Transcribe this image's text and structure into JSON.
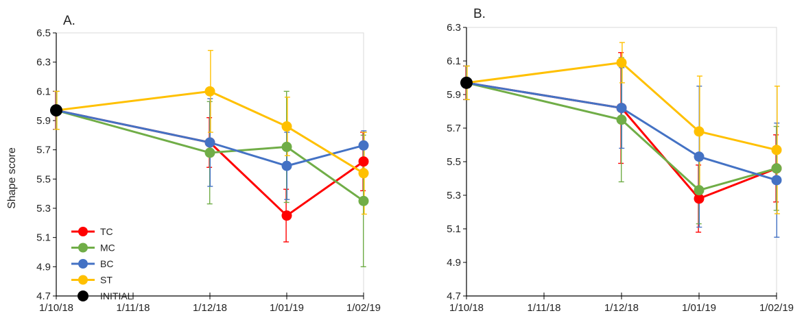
{
  "chart_data": [
    {
      "type": "line",
      "panel_label": "A.",
      "ylabel": "Shape score",
      "xlabel": "",
      "x_ticks": [
        "1/10/18",
        "1/11/18",
        "1/12/18",
        "1/01/19",
        "1/02/19"
      ],
      "y_ticks": [
        "4.7",
        "4.9",
        "5.1",
        "5.3",
        "5.5",
        "5.7",
        "5.9",
        "6.1",
        "6.3",
        "6.5"
      ],
      "ylim": [
        4.7,
        6.5
      ],
      "grid": false,
      "legend_position": "bottom-left",
      "series": [
        {
          "name": "TC",
          "color": "#ff0000",
          "x": [
            "1/10/18",
            "1/12/18",
            "1/01/19",
            "1/02/19"
          ],
          "values": [
            5.97,
            5.75,
            5.25,
            5.62
          ],
          "error": [
            0.13,
            0.17,
            0.18,
            0.2
          ]
        },
        {
          "name": "MC",
          "color": "#70ad47",
          "x": [
            "1/10/18",
            "1/12/18",
            "1/01/19",
            "1/02/19"
          ],
          "values": [
            5.97,
            5.68,
            5.72,
            5.35
          ],
          "error": [
            0.13,
            0.35,
            0.38,
            0.45
          ]
        },
        {
          "name": "BC",
          "color": "#4472c4",
          "x": [
            "1/10/18",
            "1/12/18",
            "1/01/19",
            "1/02/19"
          ],
          "values": [
            5.97,
            5.75,
            5.59,
            5.73
          ],
          "error": [
            0.13,
            0.3,
            0.23,
            0.1
          ]
        },
        {
          "name": "ST",
          "color": "#ffc000",
          "x": [
            "1/10/18",
            "1/12/18",
            "1/01/19",
            "1/02/19"
          ],
          "values": [
            5.97,
            6.1,
            5.86,
            5.54
          ],
          "error": [
            0.13,
            0.28,
            0.2,
            0.28
          ]
        },
        {
          "name": "INITIAL",
          "color": "#000000",
          "x": [
            "1/10/18"
          ],
          "values": [
            5.97
          ]
        }
      ]
    },
    {
      "type": "line",
      "panel_label": "B.",
      "xlabel": "",
      "ylabel": "",
      "x_ticks": [
        "1/10/18",
        "1/11/18",
        "1/12/18",
        "1/01/19",
        "1/02/19"
      ],
      "y_ticks": [
        "4.7",
        "4.9",
        "5.1",
        "5.3",
        "5.5",
        "5.7",
        "5.9",
        "6.1",
        "6.3"
      ],
      "ylim": [
        4.7,
        6.3
      ],
      "grid": false,
      "series": [
        {
          "color": "#ff0000",
          "x": [
            "1/10/18",
            "1/12/18",
            "1/01/19",
            "1/02/19"
          ],
          "values": [
            5.97,
            5.82,
            5.28,
            5.46
          ],
          "error": [
            0.1,
            0.33,
            0.2,
            0.2
          ]
        },
        {
          "color": "#70ad47",
          "x": [
            "1/10/18",
            "1/12/18",
            "1/01/19",
            "1/02/19"
          ],
          "values": [
            5.97,
            5.75,
            5.33,
            5.46
          ],
          "error": [
            0.1,
            0.37,
            0.2,
            0.25
          ]
        },
        {
          "color": "#4472c4",
          "x": [
            "1/10/18",
            "1/12/18",
            "1/01/19",
            "1/02/19"
          ],
          "values": [
            5.97,
            5.82,
            5.53,
            5.39
          ],
          "error": [
            0.1,
            0.24,
            0.42,
            0.34
          ]
        },
        {
          "color": "#ffc000",
          "x": [
            "1/10/18",
            "1/12/18",
            "1/01/19",
            "1/02/19"
          ],
          "values": [
            5.97,
            6.09,
            5.68,
            5.57
          ],
          "error": [
            0.1,
            0.12,
            0.33,
            0.38
          ]
        },
        {
          "color": "#000000",
          "x": [
            "1/10/18"
          ],
          "values": [
            5.97
          ]
        }
      ]
    }
  ]
}
